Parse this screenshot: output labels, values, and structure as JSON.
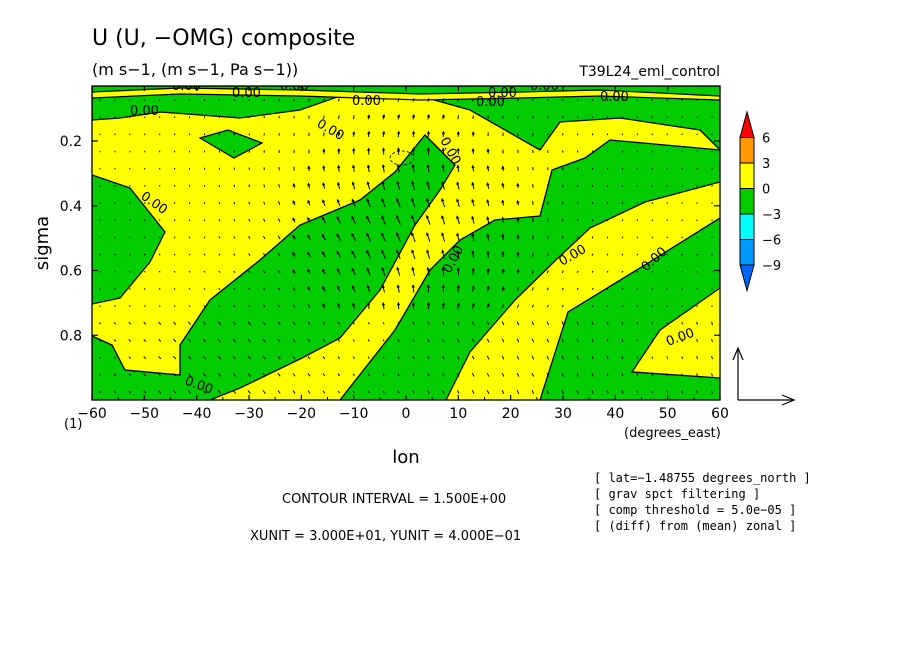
{
  "chart_data": {
    "type": "contour",
    "title": "U (U, −OMG) composite",
    "subtitle": "(m s−1, (m s−1, Pa s−1))",
    "experiment": "T39L24_eml_control",
    "xlabel": "lon",
    "xunits": "(degrees_east)",
    "ylabel": "sigma",
    "xlim": [
      -60,
      60
    ],
    "ylim": [
      1.0,
      0.03
    ],
    "xticks": [
      "−60",
      "−50",
      "−40",
      "−30",
      "−20",
      "−10",
      "0",
      "10",
      "20",
      "30",
      "40",
      "50",
      "60"
    ],
    "yticks": [
      "0.2",
      "0.4",
      "0.6",
      "0.8"
    ],
    "ytick_values": [
      0.2,
      0.4,
      0.6,
      0.8
    ],
    "panel_label": "(1)",
    "colors": {
      "positive": "#ffff00",
      "negative": "#00cc00",
      "line": "#000000"
    },
    "colorbar": {
      "levels": [
        "6",
        "3",
        "0",
        "−3",
        "−6",
        "−9"
      ],
      "colors": [
        "#ff0000",
        "#ff9900",
        "#ffff00",
        "#00cc00",
        "#00ffff",
        "#0099ff",
        "#0066ff"
      ]
    },
    "contour_labels": [
      "0.00",
      "0.00",
      "0.00",
      "0.00",
      "0.00",
      "0.00",
      "0.00",
      "0.00",
      "0.00",
      "0.00",
      "0.00",
      "0.00",
      "0.00",
      "0.00",
      "0.00",
      "0.00",
      "0.00"
    ],
    "contour_interval": "CONTOUR INTERVAL = 1.500E+00",
    "vector_units": "XUNIT = 3.000E+01, YUNIT = 4.000E−01",
    "notes": [
      "[ lat=−1.48755 degrees_north ]",
      "[ grav spct filtering ]",
      "[ comp threshold = 5.0e−05 ]",
      "[ (diff) from (mean) zonal ]"
    ]
  }
}
